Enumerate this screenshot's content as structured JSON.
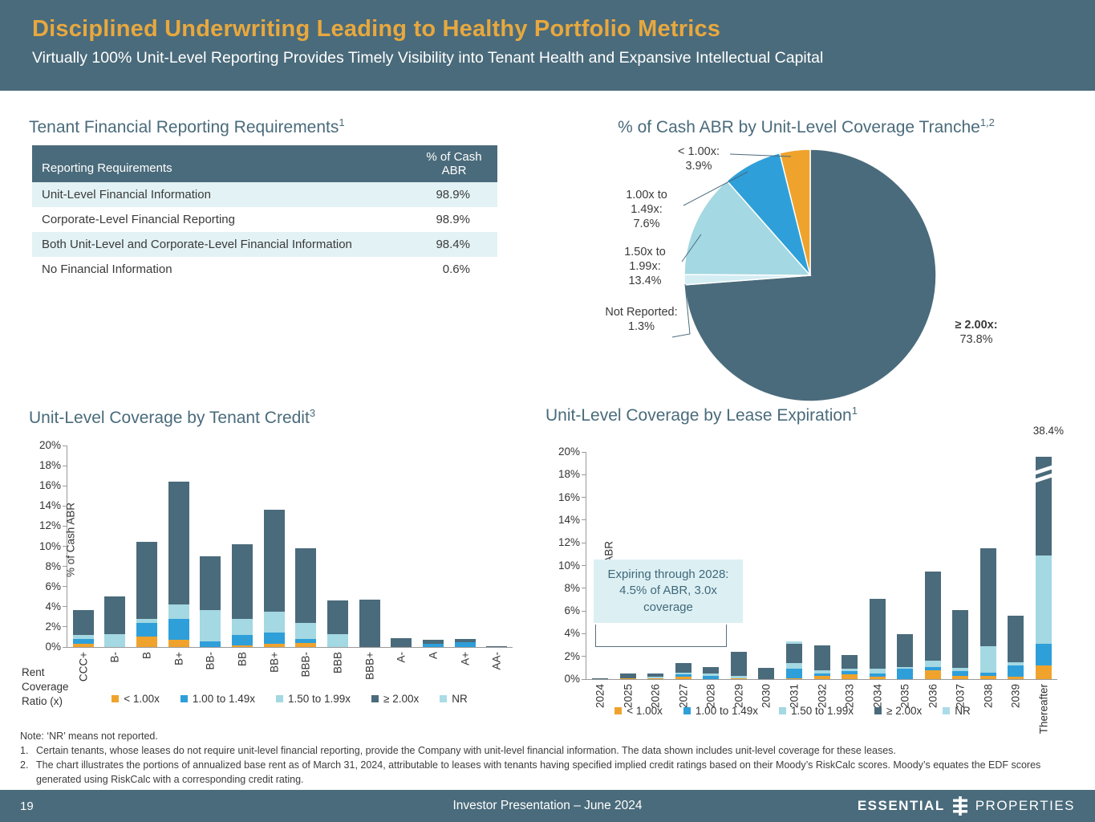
{
  "header": {
    "title": "Disciplined Underwriting Leading to Healthy Portfolio Metrics",
    "subtitle": "Virtually 100% Unit-Level Reporting Provides Timely Visibility into Tenant Health and Expansive Intellectual Capital"
  },
  "sections": {
    "reporting": {
      "title": "Tenant Financial Reporting Requirements",
      "sup": "1"
    },
    "pie": {
      "title": "% of Cash ABR by Unit-Level Coverage Tranche",
      "sup": "1,2"
    },
    "credit": {
      "title": "Unit-Level Coverage by Tenant Credit",
      "sup": "3"
    },
    "expiration": {
      "title": "Unit-Level Coverage by Lease Expiration",
      "sup": "1"
    }
  },
  "reporting_table": {
    "headers": {
      "label": "Reporting Requirements",
      "value": "% of Cash ABR"
    },
    "rows": [
      {
        "label": "Unit-Level Financial Information",
        "value": "98.9%"
      },
      {
        "label": "Corporate-Level Financial Reporting",
        "value": "98.9%"
      },
      {
        "label": "Both Unit-Level and Corporate-Level Financial Information",
        "value": "98.4%"
      },
      {
        "label": "No Financial Information",
        "value": "0.6%"
      }
    ]
  },
  "chart_data": [
    {
      "id": "coverage_pie",
      "type": "pie",
      "title": "% of Cash ABR by Unit-Level Coverage Tranche",
      "direction": "clockwise_from_top",
      "slices": [
        {
          "name": "≥ 2.00x",
          "value": 73.8,
          "color": "#4a6b7b",
          "callout": "≥ 2.00x:",
          "pct": "73.8%"
        },
        {
          "name": "Not Reported",
          "value": 1.3,
          "color": "#d3edf3",
          "callout": "Not Reported:",
          "pct": "1.3%"
        },
        {
          "name": "1.50x to 1.99x",
          "value": 13.4,
          "color": "#a4d8e2",
          "callout": "1.50x to 1.99x:",
          "pct": "13.4%"
        },
        {
          "name": "1.00x to 1.49x",
          "value": 7.6,
          "color": "#2e9fd9",
          "callout": "1.00x to 1.49x:",
          "pct": "7.6%"
        },
        {
          "name": "< 1.00x",
          "value": 3.9,
          "color": "#efa32d",
          "callout": "< 1.00x:",
          "pct": "3.9%"
        }
      ]
    },
    {
      "id": "credit_chart",
      "type": "stacked-bar",
      "title": "Unit-Level Coverage by Tenant Credit",
      "ylabel": "% of Cash ABR",
      "xlabel": "Rent Coverage Ratio (x)",
      "ylim": [
        0,
        20
      ],
      "ytick_step": 2,
      "categories": [
        "CCC+",
        "B-",
        "B",
        "B+",
        "BB-",
        "BB",
        "BB+",
        "BBB-",
        "BBB",
        "BBB+",
        "A-",
        "A",
        "A+",
        "AA-"
      ],
      "series": [
        {
          "name": "< 1.00x",
          "color": "#efa32d",
          "values": [
            0.3,
            0,
            1.0,
            0.7,
            0,
            0.2,
            0.3,
            0.4,
            0,
            0,
            0,
            0,
            0,
            0
          ]
        },
        {
          "name": "1.00 to 1.49x",
          "color": "#2e9fd9",
          "values": [
            0.5,
            0,
            1.4,
            2.1,
            0.6,
            1.0,
            1.1,
            0.4,
            0,
            0,
            0,
            0.3,
            0.5,
            0
          ]
        },
        {
          "name": "1.50 to 1.99x",
          "color": "#a4d8e2",
          "values": [
            0.4,
            1.3,
            0.4,
            1.4,
            3.1,
            1.6,
            2.1,
            1.6,
            1.3,
            0,
            0,
            0,
            0,
            0
          ]
        },
        {
          "name": "≥ 2.00x",
          "color": "#4a6b7b",
          "values": [
            2.5,
            3.7,
            7.6,
            12.2,
            5.3,
            7.4,
            10.1,
            7.4,
            3.3,
            4.7,
            0.9,
            0.4,
            0.3,
            0.1
          ]
        },
        {
          "name": "NR",
          "color": "#aadce8",
          "values": [
            0,
            0,
            0,
            0,
            0,
            0,
            0,
            0,
            0,
            0,
            0,
            0,
            0,
            0
          ]
        }
      ]
    },
    {
      "id": "expiration_chart",
      "type": "stacked-bar",
      "title": "Unit-Level Coverage by Lease Expiration",
      "ylabel": "% of Cash ABR",
      "ylim": [
        0,
        20
      ],
      "ytick_step": 2,
      "break_label": "38.4%",
      "annotation": "Expiring through 2028: 4.5% of ABR, 3.0x coverage",
      "categories": [
        "2024",
        "2025",
        "2026",
        "2027",
        "2028",
        "2029",
        "2030",
        "2031",
        "2032",
        "2033",
        "2034",
        "2035",
        "2036",
        "2037",
        "2038",
        "2039",
        "Thereafter"
      ],
      "series": [
        {
          "name": "< 1.00x",
          "color": "#efa32d",
          "values": [
            0,
            0.1,
            0.1,
            0.2,
            0,
            0.1,
            0,
            0.1,
            0.3,
            0.4,
            0.2,
            0,
            0.8,
            0.3,
            0.3,
            0.2,
            1.2
          ]
        },
        {
          "name": "1.00 to 1.49x",
          "color": "#2e9fd9",
          "values": [
            0,
            0,
            0,
            0.2,
            0.3,
            0,
            0,
            0.8,
            0.2,
            0.3,
            0.3,
            0.9,
            0.3,
            0.4,
            0.3,
            1.0,
            1.9
          ]
        },
        {
          "name": "1.50 to 1.99x",
          "color": "#a4d8e2",
          "values": [
            0,
            0,
            0.1,
            0.2,
            0.2,
            0.2,
            0,
            0.5,
            0.3,
            0.2,
            0.4,
            0.2,
            0.5,
            0.3,
            2.3,
            0.3,
            7.8
          ]
        },
        {
          "name": "≥ 2.00x",
          "color": "#4a6b7b",
          "values": [
            0.1,
            0.4,
            0.3,
            0.8,
            0.6,
            2.1,
            1.0,
            1.7,
            2.2,
            1.2,
            6.2,
            2.9,
            7.9,
            5.1,
            8.6,
            4.1,
            27.5
          ]
        },
        {
          "name": "NR",
          "color": "#aadce8",
          "values": [
            0,
            0,
            0,
            0,
            0,
            0,
            0,
            0.2,
            0,
            0,
            0,
            0,
            0,
            0,
            0,
            0,
            0
          ]
        }
      ]
    }
  ],
  "credit_axis_label": {
    "line1": "Rent",
    "line2": "Coverage",
    "line3": "Ratio (x)"
  },
  "notes": {
    "note_line": "Note: ‘NR’ means not reported.",
    "items": [
      {
        "num": "1.",
        "text": "Certain tenants, whose leases do not require unit-level financial reporting, provide the Company with unit-level financial information. The data shown includes unit-level coverage for these leases."
      },
      {
        "num": "2.",
        "text": "The chart illustrates the portions of annualized base rent as of March 31, 2024, attributable to leases with tenants having specified implied credit ratings based on their Moody’s RiskCalc scores. Moody’s equates the EDF scores generated using RiskCalc with a corresponding credit rating."
      }
    ]
  },
  "footer": {
    "page": "19",
    "center": "Investor Presentation – June 2024",
    "brand_left": "ESSENTIAL",
    "brand_right": "PROPERTIES"
  }
}
